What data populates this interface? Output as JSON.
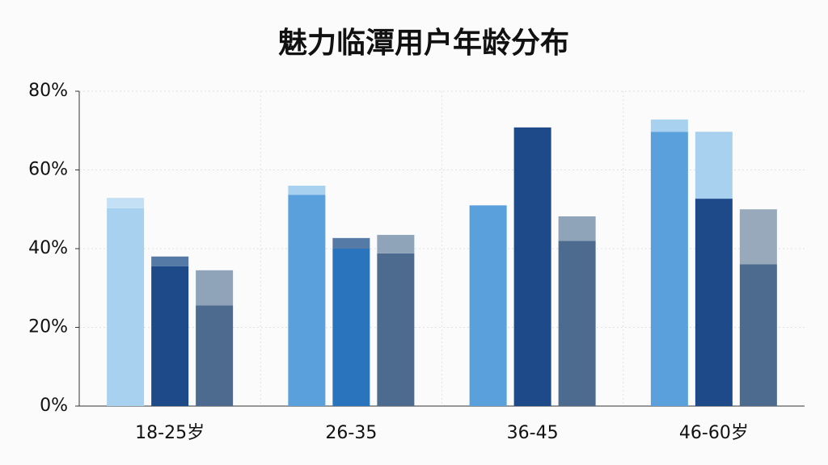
{
  "chart_data": {
    "type": "bar",
    "title": "魅力临潭用户年龄分布",
    "categories": [
      "18-25岁",
      "26-35",
      "36-45",
      "46-60岁"
    ],
    "series": [
      {
        "stack": 0,
        "colors": [
          "#a8d1f0",
          "#5aa0dc",
          "#5aa0dc",
          "#5aa0dc"
        ],
        "values": [
          50.3,
          53.7,
          51,
          69.7
        ]
      },
      {
        "stack": 0,
        "colors": [
          "#c4e0f5",
          "#a8d1f0",
          "#a8d1f0",
          "#a8d1f0"
        ],
        "values": [
          2.6,
          2.3,
          0,
          3.1
        ]
      },
      {
        "stack": 1,
        "colors": [
          "#1f4a8a",
          "#2a74bd",
          "#1f4a8a",
          "#1f4a8a"
        ],
        "values": [
          35.5,
          40,
          70.8,
          52.7
        ]
      },
      {
        "stack": 1,
        "colors": [
          "#557aa6",
          "#557aa6",
          "#557aa6",
          "#a8d1f0"
        ],
        "values": [
          2.5,
          2.7,
          0,
          17
        ]
      },
      {
        "stack": 2,
        "colors": [
          "#4d6b8e",
          "#4d6b8e",
          "#4d6b8e",
          "#4d6b8e"
        ],
        "values": [
          25.6,
          38.8,
          42,
          36
        ]
      },
      {
        "stack": 2,
        "colors": [
          "#8fa3b9",
          "#8fa3b9",
          "#8fa3b9",
          "#98a9bc"
        ],
        "values": [
          8.9,
          4.7,
          6.2,
          14
        ]
      }
    ],
    "ylim": [
      0,
      80
    ],
    "yticks": [
      {
        "value": 0,
        "label": "0%"
      },
      {
        "value": 20,
        "label": "20%"
      },
      {
        "value": 40,
        "label": "40%"
      },
      {
        "value": 60,
        "label": "60%"
      },
      {
        "value": 80,
        "label": "80%"
      }
    ],
    "grid": true
  }
}
